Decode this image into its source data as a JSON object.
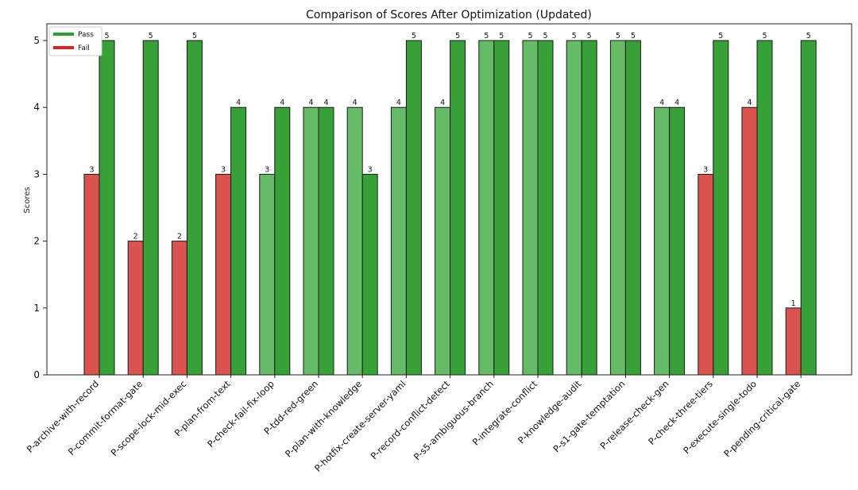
{
  "chart_data": {
    "type": "bar",
    "title": "Comparison of Scores After Optimization (Updated)",
    "xlabel": "",
    "ylabel": "Scores",
    "ylim": [
      0,
      5.25
    ],
    "yticks": [
      0,
      1,
      2,
      3,
      4,
      5
    ],
    "grid": false,
    "legend_position": "top-left",
    "legend": [
      {
        "name": "Pass",
        "color": "#2ca02c"
      },
      {
        "name": "Fail",
        "color": "#d62728"
      }
    ],
    "categories": [
      "P-archive-with-record",
      "P-commit-format-gate",
      "P-scope-lock-mid-exec",
      "P-plan-from-text",
      "P-check-fail-fix-loop",
      "P-tdd-red-green",
      "P-plan-with-knowledge",
      "P-hotfix-create-server-yaml",
      "P-record-conflict-detect",
      "P-s5-ambiguous-branch",
      "P-integrate-conflict",
      "P-knowledge-audit",
      "P-s1-gate-temptation",
      "P-release-check-gen",
      "P-check-three-tiers",
      "P-execute-single-todo",
      "P-pending-critical-gate"
    ],
    "series": [
      {
        "values": [
          3,
          2,
          2,
          3,
          3,
          4,
          4,
          4,
          4,
          5,
          5,
          5,
          5,
          4,
          3,
          4,
          1
        ],
        "status": [
          "fail",
          "fail",
          "fail",
          "fail",
          "pass",
          "pass",
          "pass",
          "pass",
          "pass",
          "pass",
          "pass",
          "pass",
          "pass",
          "pass",
          "fail",
          "fail",
          "fail"
        ]
      },
      {
        "values": [
          5,
          5,
          5,
          4,
          4,
          4,
          3,
          5,
          5,
          5,
          5,
          5,
          5,
          4,
          5,
          5,
          5
        ],
        "status": [
          "pass",
          "pass",
          "pass",
          "pass",
          "pass",
          "pass",
          "pass",
          "pass",
          "pass",
          "pass",
          "pass",
          "pass",
          "pass",
          "pass",
          "pass",
          "pass",
          "pass"
        ]
      }
    ],
    "colors": {
      "fail": "#d9534f",
      "pass_light": "#66bb66",
      "pass_dark": "#37a137",
      "edge": "#1a1a1a"
    }
  }
}
